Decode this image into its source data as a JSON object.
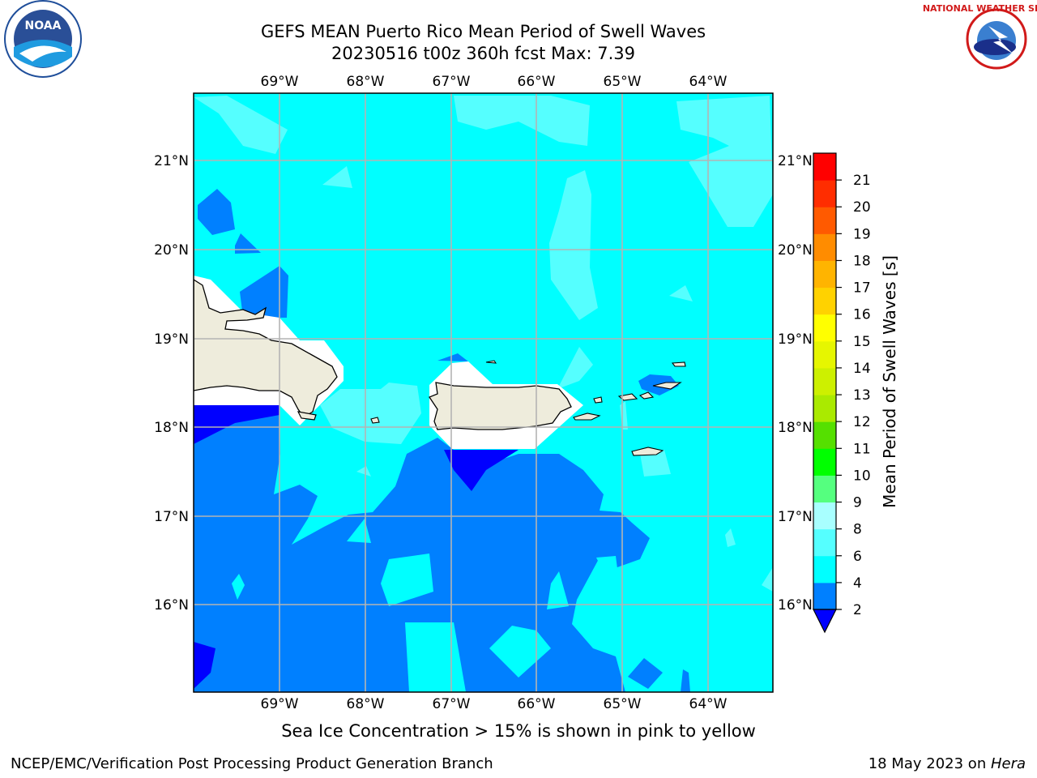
{
  "header": {
    "title_line1": "GEFS MEAN Puerto Rico Mean Period of Swell Waves",
    "title_line2": "20230516 t00z 360h fcst   Max: 7.39"
  },
  "logos": {
    "noaa": {
      "text": "NOAA",
      "icon": "noaa-logo-icon"
    },
    "nws": {
      "text": "NATIONAL WEATHER SERVICE",
      "icon": "nws-logo-icon"
    }
  },
  "map": {
    "lon_ticks": [
      "69°W",
      "68°W",
      "67°W",
      "66°W",
      "65°W",
      "64°W"
    ],
    "lat_ticks": [
      "21°N",
      "20°N",
      "19°N",
      "18°N",
      "17°N",
      "16°N"
    ],
    "colors": {
      "ocean_2_4": "#0080ff",
      "ocean_4_6": "#00ffff",
      "ocean_6_8": "#55ffff",
      "below_2": "#0000ff",
      "land": "#eeecdc",
      "grid": "#b4b4b4"
    }
  },
  "colorbar": {
    "label": "Mean Period of Swell Waves [s]",
    "tick_labels": [
      "2",
      "4",
      "6",
      "8",
      "9",
      "10",
      "11",
      "12",
      "13",
      "14",
      "15",
      "16",
      "17",
      "18",
      "19",
      "20",
      "21"
    ],
    "colors": [
      "#0080ff",
      "#00ffff",
      "#55ffff",
      "#a8ffff",
      "#55ff7f",
      "#00ff00",
      "#55e000",
      "#aaea00",
      "#cdf000",
      "#e6f600",
      "#ffff00",
      "#ffd200",
      "#ffb400",
      "#ff8c00",
      "#ff5a00",
      "#ff2d00",
      "#ff0000"
    ],
    "extend_color": "#0000ff"
  },
  "subtitle": "Sea Ice Concentration > 15% is shown in pink to yellow",
  "footer": {
    "left": "NCEP/EMC/Verification Post Processing Product Generation Branch",
    "right_date": "18 May 2023 on ",
    "right_host": "Hera"
  }
}
